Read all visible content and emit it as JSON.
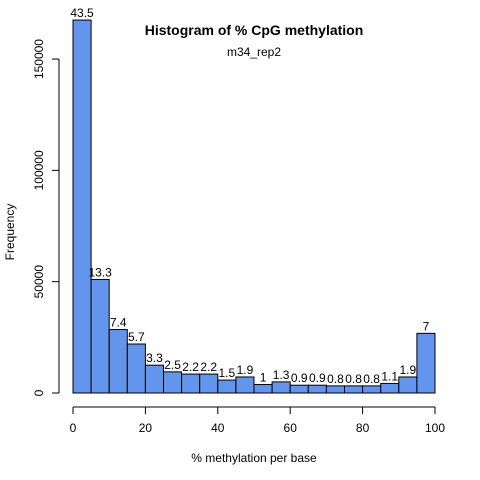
{
  "chart_data": {
    "type": "bar",
    "title": "Histogram of % CpG methylation",
    "subtitle": "m34_rep2",
    "xlabel": "% methylation per base",
    "ylabel": "Frequency",
    "bin_width": 5,
    "bin_starts": [
      0,
      5,
      10,
      15,
      20,
      25,
      30,
      35,
      40,
      45,
      50,
      55,
      60,
      65,
      70,
      75,
      80,
      85,
      90,
      95
    ],
    "values": [
      167500,
      51000,
      28500,
      22000,
      12500,
      9500,
      8500,
      8500,
      5800,
      7200,
      3800,
      5000,
      3500,
      3500,
      3200,
      3200,
      3200,
      4300,
      7200,
      26800
    ],
    "labels": [
      "43.5",
      "13.3",
      "7.4",
      "5.7",
      "3.3",
      "2.5",
      "2.2",
      "2.2",
      "1.5",
      "1.9",
      "1",
      "1.3",
      "0.9",
      "0.9",
      "0.8",
      "0.8",
      "0.8",
      "1.1",
      "1.9",
      "7"
    ],
    "xlim": [
      0,
      100
    ],
    "ylim": [
      0,
      170000
    ],
    "x_ticks": [
      0,
      20,
      40,
      60,
      80,
      100
    ],
    "y_ticks": [
      0,
      50000,
      100000,
      150000
    ],
    "bar_color": "#6495ED",
    "grid": false,
    "legend": "none"
  }
}
